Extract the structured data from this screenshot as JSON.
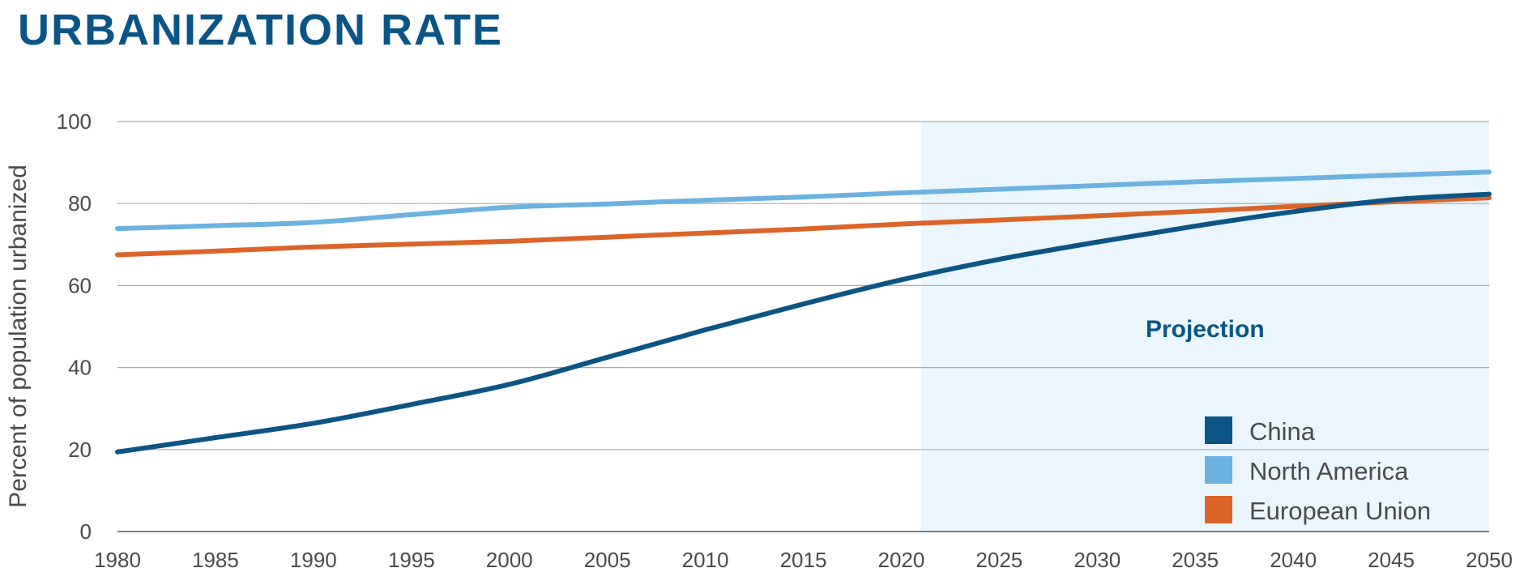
{
  "chart_data": {
    "type": "line",
    "title": "URBANIZATION RATE",
    "xlabel": "",
    "ylabel": "Percent of population urbanized",
    "xlim": [
      1980,
      2050
    ],
    "ylim": [
      0,
      100
    ],
    "x_ticks": [
      1980,
      1985,
      1990,
      1995,
      2000,
      2005,
      2010,
      2015,
      2020,
      2025,
      2030,
      2035,
      2040,
      2045,
      2050
    ],
    "y_ticks": [
      0,
      20,
      40,
      60,
      80,
      100
    ],
    "grid": "horizontal",
    "legend_position": "bottom-right",
    "projection": {
      "label": "Projection",
      "start": 2021,
      "end": 2050,
      "color": "#eaf6fc"
    },
    "x": [
      1980,
      1985,
      1990,
      1995,
      2000,
      2005,
      2010,
      2015,
      2020,
      2025,
      2030,
      2035,
      2040,
      2045,
      2050
    ],
    "series": [
      {
        "name": "China",
        "color": "#0a5585",
        "values": [
          19.4,
          22.9,
          26.4,
          31.0,
          35.9,
          42.5,
          49.2,
          55.5,
          61.4,
          66.4,
          70.6,
          74.5,
          78.0,
          80.9,
          82.3
        ]
      },
      {
        "name": "North America",
        "color": "#6cb2e1",
        "values": [
          73.9,
          74.6,
          75.4,
          77.3,
          79.1,
          79.9,
          80.8,
          81.6,
          82.6,
          83.5,
          84.4,
          85.3,
          86.1,
          86.9,
          87.7
        ]
      },
      {
        "name": "European Union",
        "color": "#dc6428",
        "values": [
          67.5,
          68.4,
          69.4,
          70.1,
          70.8,
          71.8,
          72.8,
          73.8,
          75.0,
          76.0,
          77.0,
          78.1,
          79.3,
          80.4,
          81.4
        ]
      }
    ]
  }
}
